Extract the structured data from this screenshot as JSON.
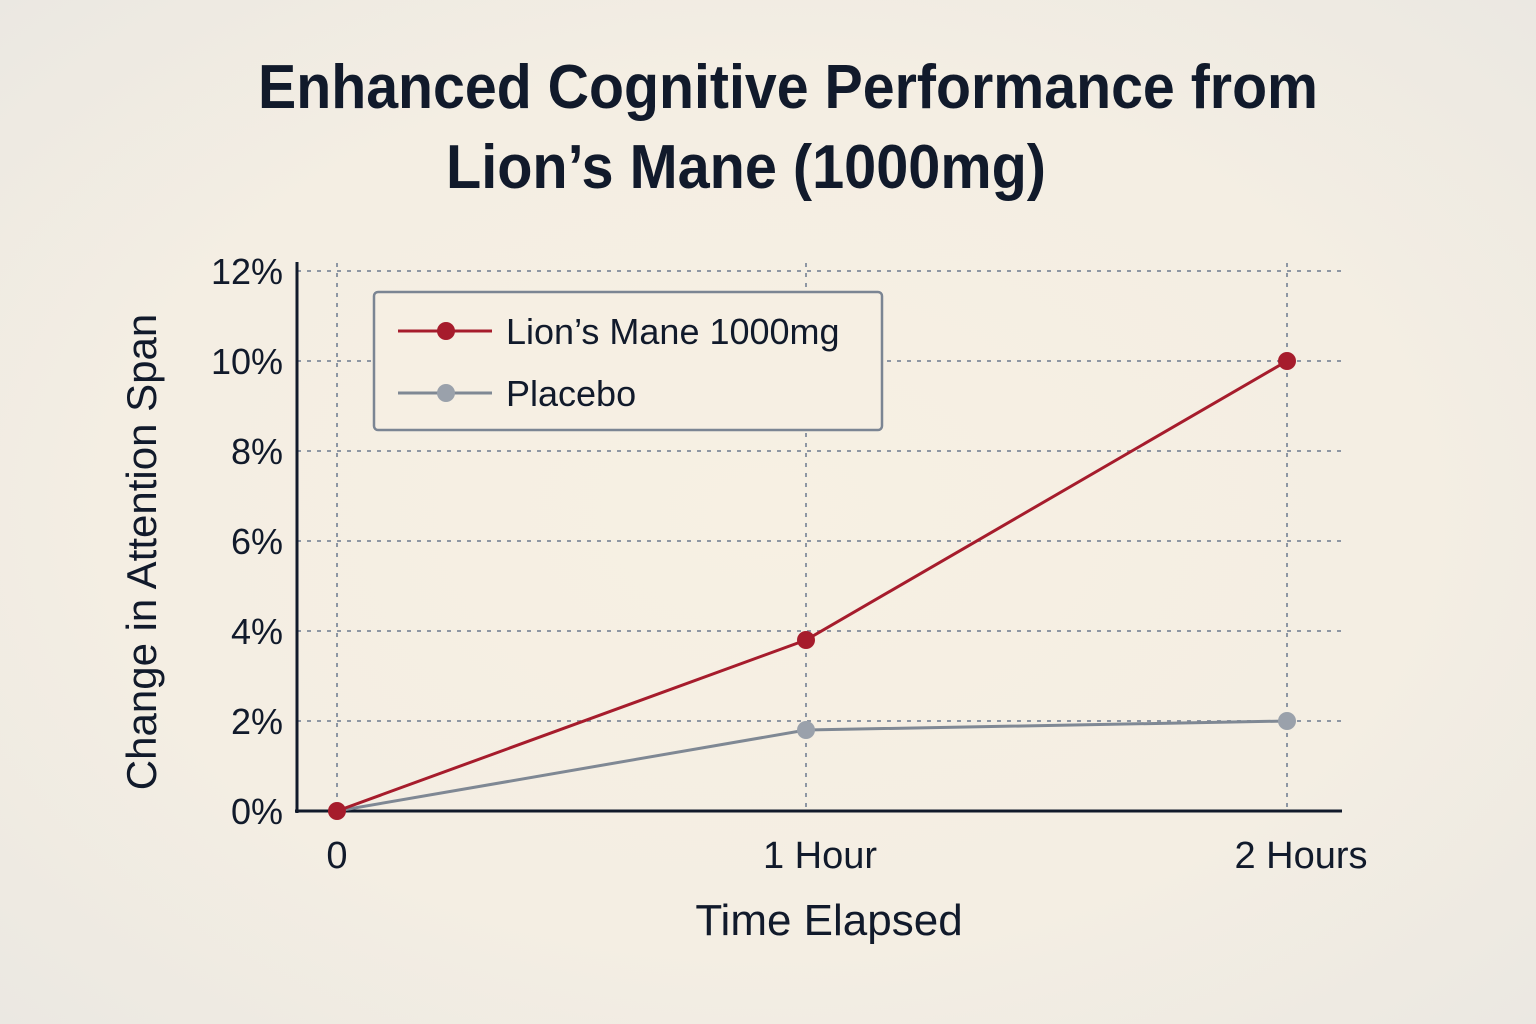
{
  "chart_data": {
    "type": "line",
    "title": "Enhanced Cognitive Performance from Lion’s Mane (1000mg)",
    "title_lines": [
      "Enhanced Cognitive Performance from",
      "Lion’s Mane (1000mg)"
    ],
    "xlabel": "Time Elapsed",
    "ylabel": "Change in Attention Span",
    "categories": [
      "0",
      "1 Hour",
      "2 Hours"
    ],
    "ylim": [
      0,
      12
    ],
    "yticks": [
      "0%",
      "2%",
      "4%",
      "6%",
      "8%",
      "10%",
      "12%"
    ],
    "ytick_values": [
      0,
      2,
      4,
      6,
      8,
      10,
      12
    ],
    "grid": true,
    "legend_position": "top-left",
    "series": [
      {
        "name": "Lion’s Mane 1000mg",
        "values": [
          0,
          3.8,
          10
        ],
        "color": "#a61c2c"
      },
      {
        "name": "Placebo",
        "values": [
          0,
          1.8,
          2.0
        ],
        "color": "#7f8894",
        "marker_color": "#9aa1ab"
      }
    ]
  }
}
